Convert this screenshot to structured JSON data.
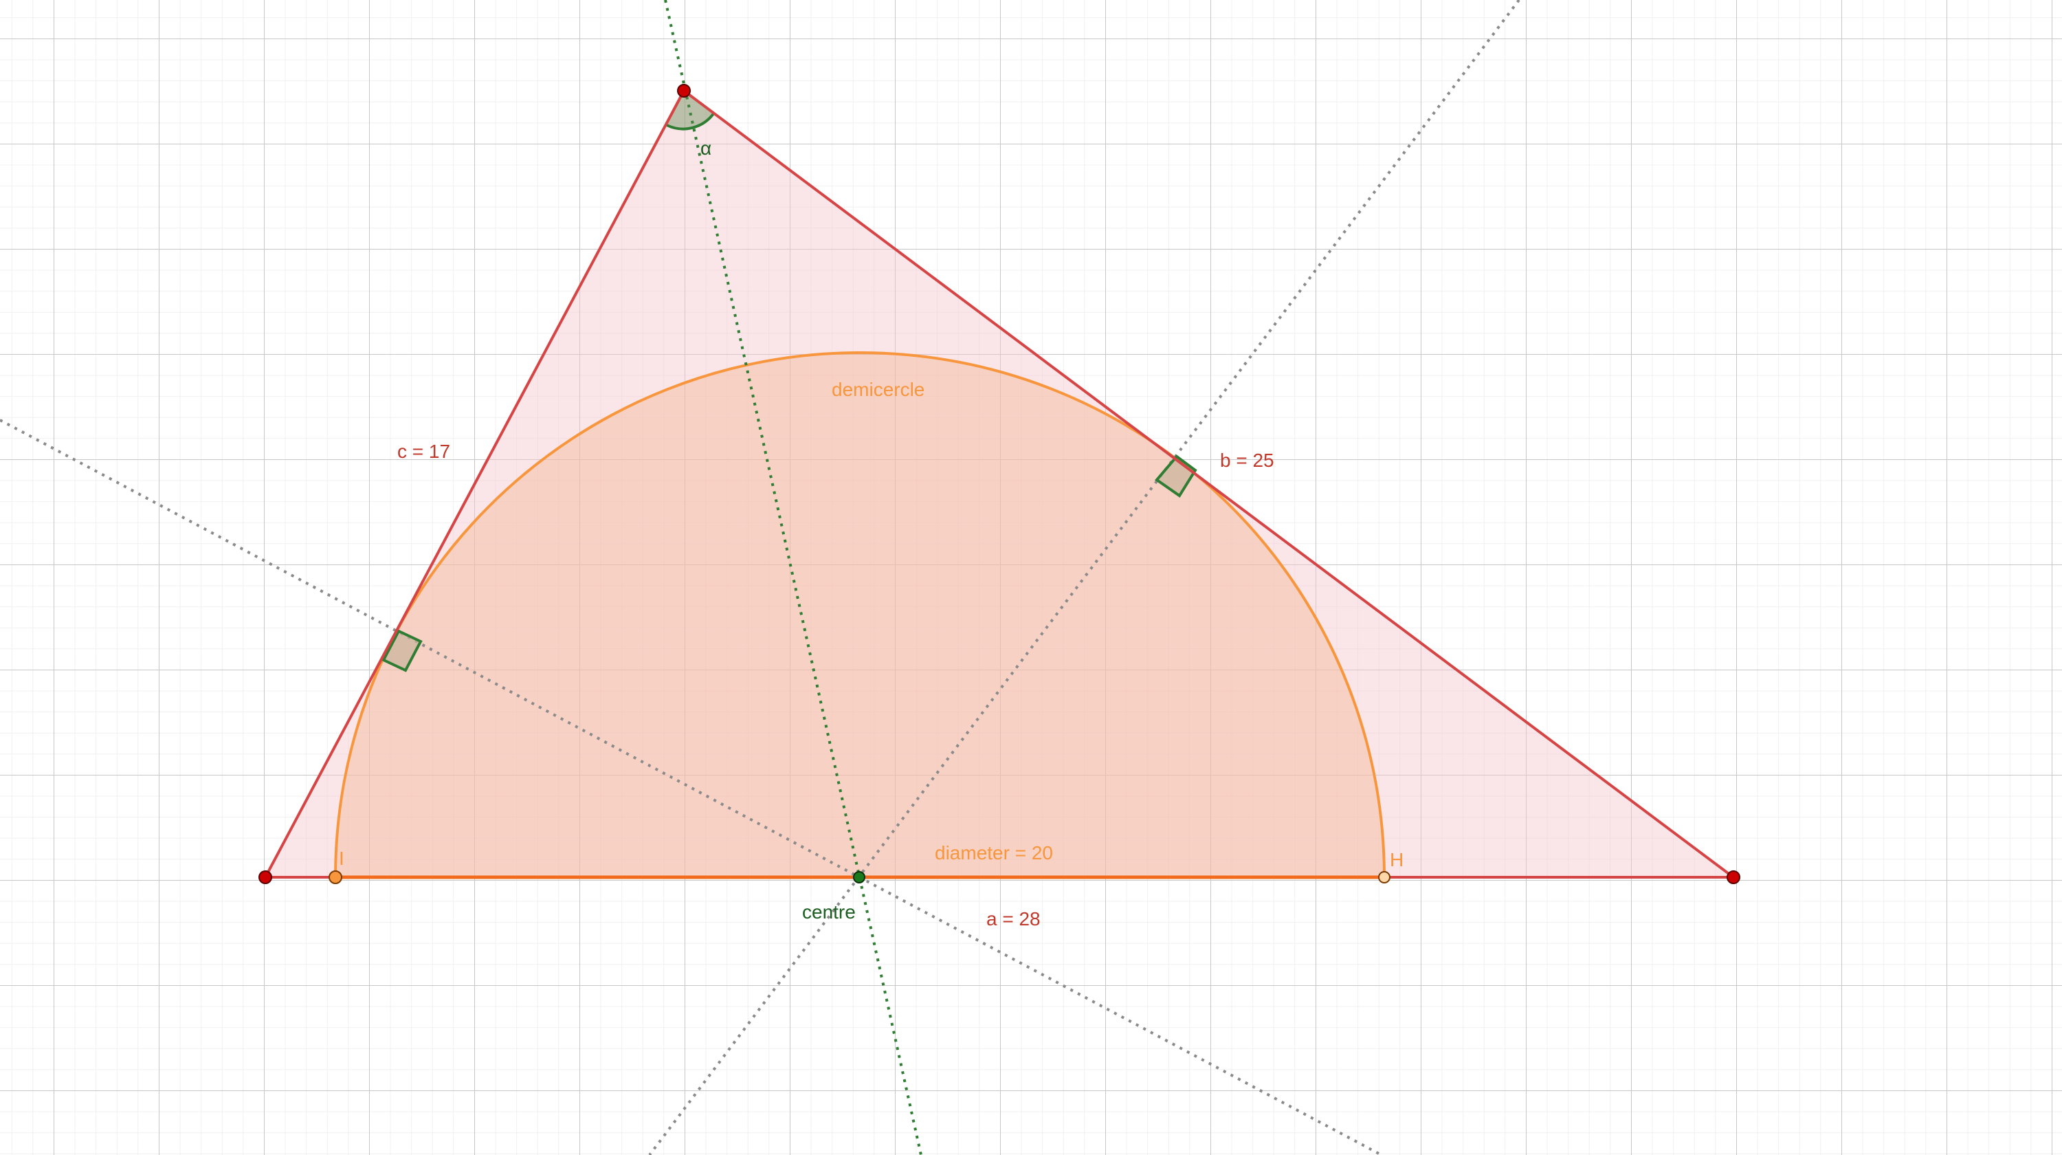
{
  "labels": {
    "side_c": "c = 17",
    "side_b": "b = 25",
    "side_a": "a = 28",
    "demicircle": "demicercle",
    "diameter": "diameter = 20",
    "centre": "centre",
    "angle": "α",
    "point_i": "I",
    "point_h": "H"
  },
  "colors": {
    "triangle": "#d64545",
    "triangle_fill": "#f4c6cc",
    "semicircle": "#f7963c",
    "semicircle_fill": "#f6b591",
    "diameter": "#f26a1b",
    "green": "#2e7d32",
    "angle_fill": "#5a8a4a",
    "gray_line": "#8a8a8a",
    "grid_major": "#c7c7c7",
    "grid_minor": "#ececec"
  }
}
